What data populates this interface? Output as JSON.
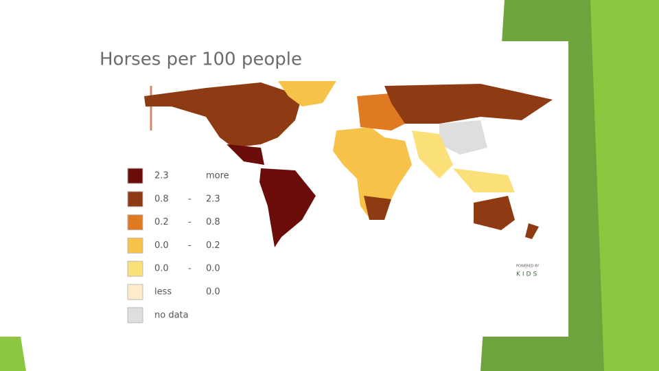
{
  "title": "Horses per 100 people",
  "legend": [
    {
      "from": "2.3",
      "to": "more",
      "color": "#6a0d0a"
    },
    {
      "from": "0.8",
      "dash": "-",
      "to": "2.3",
      "color": "#8e3a12"
    },
    {
      "from": "0.2",
      "dash": "-",
      "to": "0.8",
      "color": "#e07a22"
    },
    {
      "from": "0.0",
      "dash": "-",
      "to": "0.2",
      "color": "#f6c24a"
    },
    {
      "from": "0.0",
      "dash": "-",
      "to": "0.0",
      "color": "#fbe07a"
    },
    {
      "from": "less",
      "to": "0.0",
      "color": "#fdeccb"
    },
    {
      "from": "no data",
      "color": "#dedede"
    }
  ],
  "logo": {
    "caption": "POWERED BY",
    "name": "KIDS"
  }
}
